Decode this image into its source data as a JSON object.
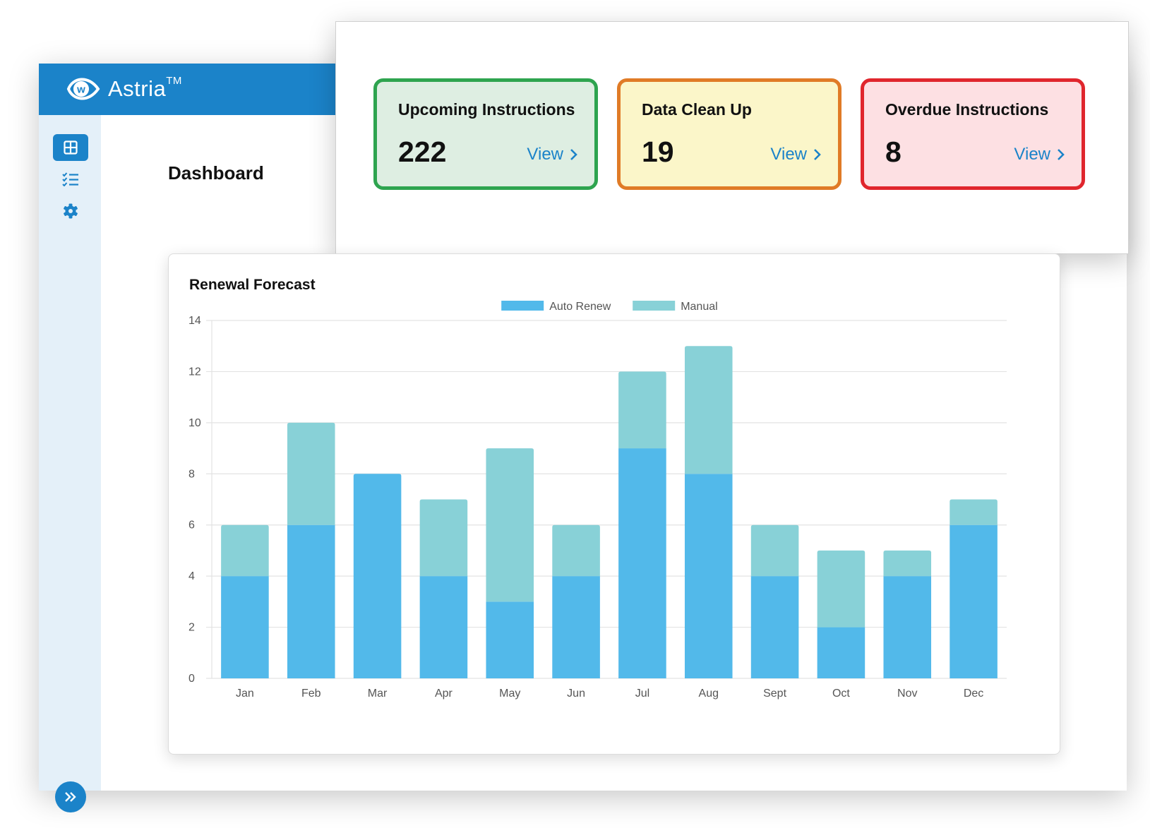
{
  "app": {
    "brand_name": "Astria",
    "brand_tm": "TM",
    "page_title": "Dashboard"
  },
  "sidebar": {
    "items": [
      {
        "name": "dashboard",
        "icon": "grid-icon",
        "active": true
      },
      {
        "name": "checklist",
        "icon": "checklist-icon",
        "active": false
      },
      {
        "name": "settings",
        "icon": "gear-icon",
        "active": false
      }
    ],
    "expand_icon": "double-chevron-right-icon"
  },
  "kpis": [
    {
      "label": "Upcoming Instructions",
      "value": "222",
      "link": "View",
      "color": "#2ea44f"
    },
    {
      "label": "Data Clean Up",
      "value": "19",
      "link": "View",
      "color": "#e07b26"
    },
    {
      "label": "Overdue Instructions",
      "value": "8",
      "link": "View",
      "color": "#e0262d"
    }
  ],
  "chart_data": {
    "type": "bar",
    "stacked": true,
    "title": "Renewal Forecast",
    "categories": [
      "Jan",
      "Feb",
      "Mar",
      "Apr",
      "May",
      "Jun",
      "Jul",
      "Aug",
      "Sept",
      "Oct",
      "Nov",
      "Dec"
    ],
    "series": [
      {
        "name": "Auto Renew",
        "color": "#52b9ea",
        "values": [
          4,
          6,
          8,
          4,
          3,
          4,
          9,
          8,
          4,
          2,
          4,
          6
        ]
      },
      {
        "name": "Manual",
        "color": "#88d1d7",
        "values": [
          2,
          4,
          0,
          3,
          6,
          2,
          3,
          5,
          2,
          3,
          1,
          1
        ]
      }
    ],
    "ylim": [
      0,
      14
    ],
    "yticks": [
      0,
      2,
      4,
      6,
      8,
      10,
      12,
      14
    ],
    "grid": true,
    "legend_position": "top-center"
  }
}
